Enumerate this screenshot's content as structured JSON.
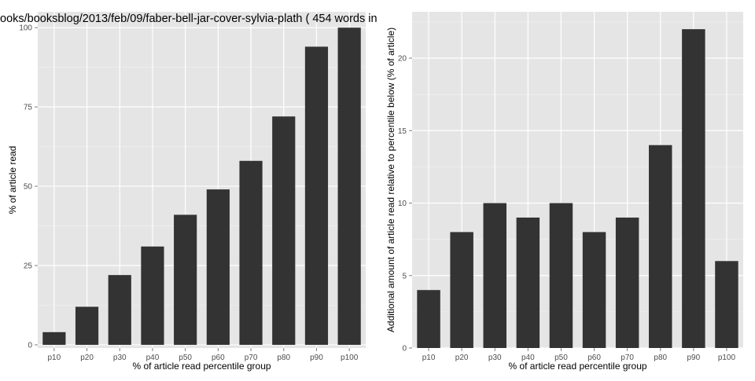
{
  "title": "ooks/booksblog/2013/feb/09/faber-bell-jar-cover-sylvia-plath ( 454 words in",
  "chart_data": [
    {
      "type": "bar",
      "title": "",
      "xlabel": "% of article read percentile group",
      "ylabel": "% of article read",
      "categories": [
        "p10",
        "p20",
        "p30",
        "p40",
        "p50",
        "p60",
        "p70",
        "p80",
        "p90",
        "p100"
      ],
      "values": [
        4,
        12,
        22,
        31,
        41,
        49,
        58,
        72,
        94,
        100
      ],
      "yticks": [
        "0",
        "25",
        "50",
        "75",
        "100"
      ],
      "ytick_values": [
        0,
        25,
        50,
        75,
        100
      ],
      "ylim": [
        -1,
        105
      ],
      "grid": true,
      "bar_color": "#333333",
      "panel_color": "#e5e5e5"
    },
    {
      "type": "bar",
      "title": "",
      "xlabel": "% of article read percentile group",
      "ylabel": "Additional amount of article read relative to percentile below (% of article)",
      "categories": [
        "p10",
        "p20",
        "p30",
        "p40",
        "p50",
        "p60",
        "p70",
        "p80",
        "p90",
        "p100"
      ],
      "values": [
        4,
        8,
        10,
        9,
        10,
        8,
        9,
        14,
        22,
        6
      ],
      "yticks": [
        "0",
        "5",
        "10",
        "15",
        "20"
      ],
      "ytick_values": [
        0,
        5,
        10,
        15,
        20
      ],
      "ylim": [
        0,
        23.2
      ],
      "grid": true,
      "bar_color": "#333333",
      "panel_color": "#e5e5e5"
    }
  ]
}
